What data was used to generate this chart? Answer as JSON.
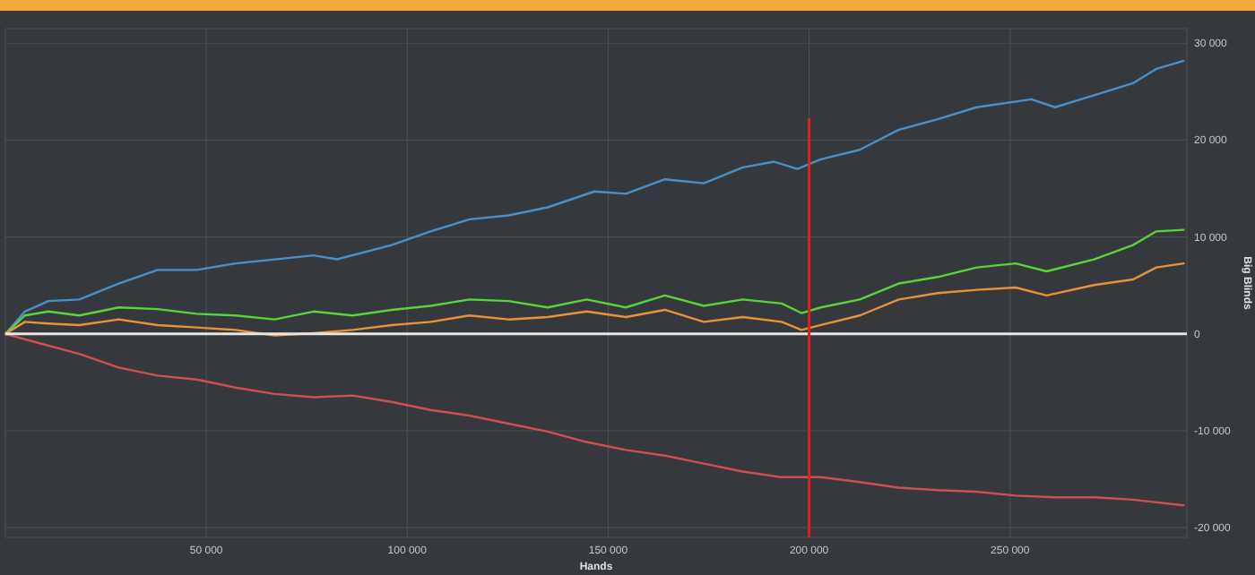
{
  "chart_data": {
    "type": "line",
    "xlabel": "Hands",
    "ylabel": "Big Blinds",
    "xlim": [
      0,
      294000
    ],
    "ylim": [
      -21000,
      31500
    ],
    "xticks": [
      {
        "value": 50000,
        "label": "50 000"
      },
      {
        "value": 100000,
        "label": "100 000"
      },
      {
        "value": 150000,
        "label": "150 000"
      },
      {
        "value": 200000,
        "label": "200 000"
      },
      {
        "value": 250000,
        "label": "250 000"
      }
    ],
    "yticks": [
      {
        "value": -20000,
        "label": "-20 000"
      },
      {
        "value": -10000,
        "label": "-10 000"
      },
      0,
      {
        "value": 10000,
        "label": "10 000"
      },
      {
        "value": 20000,
        "label": "20 000"
      },
      {
        "value": 30000,
        "label": "30 000"
      }
    ],
    "grid": true,
    "marker": "none",
    "line_style": "solid",
    "ref_lines": [
      {
        "axis": "y",
        "value": 0,
        "color": "#e6e6e6"
      },
      {
        "axis": "x",
        "value": 200000,
        "color": "#e0201c"
      }
    ],
    "series": [
      {
        "color": "#4a90c8",
        "x": [
          0,
          4850,
          10700,
          18400,
          28200,
          37900,
          47600,
          57300,
          67000,
          76700,
          82500,
          96100,
          105800,
          115500,
          125200,
          134950,
          146600,
          154400,
          164100,
          173800,
          183500,
          191300,
          197100,
          202900,
          212600,
          222300,
          232000,
          241700,
          255300,
          261200,
          270900,
          280600,
          286400,
          293200
        ],
        "values": [
          0,
          2310,
          3390,
          3550,
          5200,
          6600,
          6600,
          7270,
          7690,
          8100,
          7700,
          9170,
          10580,
          11820,
          12230,
          13060,
          14700,
          14460,
          15950,
          15540,
          17190,
          17770,
          17020,
          18020,
          19000,
          21070,
          22150,
          23390,
          24210,
          23390,
          24630,
          25870,
          27350,
          28180
        ]
      },
      {
        "color": "#5ad43a",
        "x": [
          0,
          4850,
          10700,
          18400,
          28200,
          37900,
          47600,
          57300,
          67000,
          76700,
          86400,
          96100,
          105800,
          115500,
          125200,
          134950,
          144650,
          154400,
          164100,
          173800,
          183500,
          193200,
          198100,
          202900,
          212600,
          222300,
          232000,
          241700,
          251400,
          259100,
          270900,
          280600,
          286400,
          293200
        ],
        "values": [
          0,
          1900,
          2310,
          1900,
          2730,
          2560,
          2070,
          1900,
          1490,
          2310,
          1900,
          2480,
          2890,
          3550,
          3390,
          2730,
          3550,
          2730,
          3970,
          2890,
          3550,
          3140,
          2150,
          2730,
          3550,
          5200,
          5870,
          6860,
          7270,
          6450,
          7690,
          9170,
          10580,
          10740
        ]
      },
      {
        "color": "#e8923a",
        "x": [
          0,
          4850,
          10700,
          18400,
          28200,
          37900,
          47600,
          57300,
          67000,
          76700,
          86400,
          96100,
          105800,
          115500,
          125200,
          134950,
          144650,
          154400,
          164100,
          173800,
          183500,
          193200,
          198100,
          202900,
          212600,
          222300,
          232000,
          241700,
          251400,
          259100,
          270900,
          280600,
          286400,
          293200
        ],
        "values": [
          0,
          1240,
          1070,
          910,
          1490,
          910,
          660,
          410,
          -170,
          80,
          410,
          910,
          1240,
          1900,
          1490,
          1740,
          2310,
          1740,
          2480,
          1240,
          1740,
          1240,
          410,
          910,
          1900,
          3550,
          4210,
          4550,
          4790,
          3970,
          5040,
          5620,
          6860,
          7270
        ]
      },
      {
        "color": "#d05050",
        "x": [
          0,
          8700,
          18400,
          28200,
          37900,
          47600,
          57300,
          67000,
          76700,
          86400,
          96100,
          105800,
          115500,
          125200,
          134950,
          144650,
          154400,
          164100,
          173800,
          183500,
          193200,
          202900,
          212600,
          222300,
          232000,
          241700,
          251400,
          261200,
          270900,
          280600,
          293200
        ],
        "values": [
          0,
          -990,
          -2070,
          -3470,
          -4300,
          -4710,
          -5540,
          -6200,
          -6530,
          -6360,
          -7020,
          -7850,
          -8430,
          -9260,
          -10080,
          -11160,
          -11980,
          -12560,
          -13390,
          -14210,
          -14790,
          -14790,
          -15290,
          -15870,
          -16120,
          -16280,
          -16690,
          -16860,
          -16860,
          -17110,
          -17690
        ]
      }
    ]
  }
}
